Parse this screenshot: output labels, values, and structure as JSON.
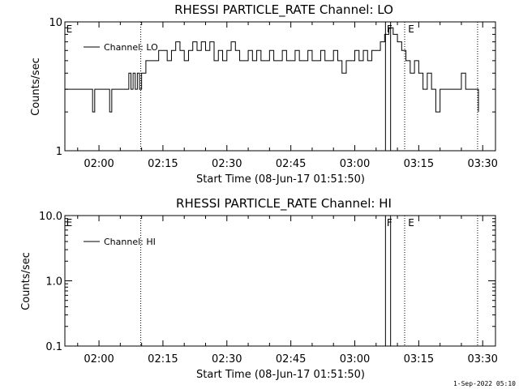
{
  "footer": {
    "timestamp": "1-Sep-2022 05:10"
  },
  "chart_data": [
    {
      "type": "line",
      "title": "RHESSI PARTICLE_RATE Channel: LO",
      "xlabel": "Start Time (08-Jun-17 01:51:50)",
      "ylabel": "Counts/sec",
      "y_scale": "log",
      "ylim": [
        1,
        10
      ],
      "y_ticks": [
        1,
        10
      ],
      "y_tick_labels": [
        "1",
        "10"
      ],
      "x_ticks": [
        8,
        23,
        38,
        53,
        68,
        83,
        98
      ],
      "x_tick_labels": [
        "02:00",
        "02:15",
        "02:30",
        "02:45",
        "03:00",
        "03:15",
        "03:30"
      ],
      "xlim": [
        0,
        101
      ],
      "legend": {
        "position": "top-left",
        "label": "Channel: LO"
      },
      "markers": [
        {
          "label": "E",
          "x": 0.3
        },
        {
          "label": "F",
          "x": 75.5
        },
        {
          "label": "E",
          "x": 80.5
        }
      ],
      "vlines": {
        "dotted": [
          17.8,
          79.7,
          96.8
        ],
        "solid": [
          75.2,
          76.4
        ]
      },
      "series": [
        {
          "name": "Channel: LO",
          "x": [
            0,
            6,
            6.5,
            7,
            7.5,
            10,
            10.5,
            11,
            11.5,
            12,
            14.5,
            15,
            15.5,
            16,
            16.5,
            17,
            17.5,
            18,
            19,
            20,
            21,
            22,
            23,
            24,
            25,
            26,
            27,
            28,
            29,
            30,
            31,
            32,
            33,
            34,
            35,
            36,
            37,
            38,
            39,
            40,
            41,
            42,
            43,
            44,
            45,
            46,
            47,
            48,
            49,
            50,
            51,
            52,
            53,
            54,
            55,
            56,
            57,
            58,
            59,
            60,
            61,
            62,
            63,
            64,
            65,
            66,
            67,
            68,
            69,
            70,
            71,
            72,
            73,
            74,
            75,
            76,
            77,
            78,
            79,
            80,
            81,
            82,
            83,
            84,
            85,
            86,
            87,
            88,
            89,
            90,
            91,
            92,
            93,
            94,
            95,
            96,
            97
          ],
          "y": [
            3,
            3,
            2,
            3,
            3,
            3,
            2,
            3,
            3,
            3,
            3,
            4,
            3,
            4,
            3,
            4,
            3,
            4,
            5,
            5,
            5,
            6,
            6,
            5,
            6,
            7,
            6,
            5,
            6,
            7,
            6,
            7,
            6,
            7,
            5,
            6,
            5,
            6,
            7,
            6,
            5,
            5,
            6,
            5,
            6,
            5,
            5,
            6,
            5,
            5,
            6,
            5,
            5,
            6,
            5,
            5,
            6,
            5,
            5,
            6,
            5,
            5,
            6,
            5,
            4,
            5,
            5,
            6,
            5,
            6,
            5,
            6,
            6,
            7,
            8,
            9,
            8,
            7,
            6,
            5,
            4,
            5,
            4,
            3,
            4,
            3,
            2,
            3,
            3,
            3,
            3,
            3,
            4,
            3,
            3,
            3,
            2
          ]
        }
      ]
    },
    {
      "type": "line",
      "title": "RHESSI PARTICLE_RATE Channel: HI",
      "xlabel": "Start Time (08-Jun-17 01:51:50)",
      "ylabel": "Counts/sec",
      "y_scale": "log",
      "ylim": [
        0.1,
        10
      ],
      "y_ticks": [
        0.1,
        1,
        10
      ],
      "y_tick_labels": [
        "0.1",
        "1.0",
        "10.0"
      ],
      "x_ticks": [
        8,
        23,
        38,
        53,
        68,
        83,
        98
      ],
      "x_tick_labels": [
        "02:00",
        "02:15",
        "02:30",
        "02:45",
        "03:00",
        "03:15",
        "03:30"
      ],
      "xlim": [
        0,
        101
      ],
      "legend": {
        "position": "top-left",
        "label": "Channel: HI"
      },
      "markers": [
        {
          "label": "E",
          "x": 0.3
        },
        {
          "label": "F",
          "x": 75.5
        },
        {
          "label": "E",
          "x": 80.5
        }
      ],
      "vlines": {
        "dotted": [
          17.8,
          79.7,
          96.8
        ],
        "solid": [
          75.2,
          76.4
        ]
      },
      "series": [
        {
          "name": "Channel: HI",
          "x": [],
          "y": []
        }
      ]
    }
  ]
}
